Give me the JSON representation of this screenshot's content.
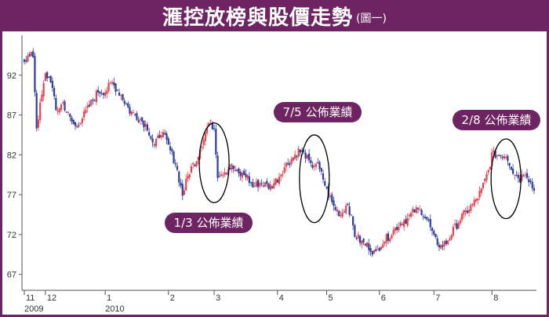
{
  "header": {
    "title": "滙控放榜與股價走勢",
    "subtitle": "(圖一)"
  },
  "colors": {
    "banner": "#6e2462",
    "up": "#e8434f",
    "down": "#2b3e9a",
    "ellipse": "#000000"
  },
  "chart_data": {
    "type": "candlestick",
    "title": "滙控放榜與股價走勢",
    "subtitle": "(圖一)",
    "ylim": [
      65,
      97
    ],
    "yticks": [
      92,
      87,
      82,
      77,
      72,
      67
    ],
    "grid": false,
    "x_ticks": [
      {
        "label": "11",
        "idx": 0
      },
      {
        "label": "12",
        "idx": 12
      },
      {
        "label": "1",
        "idx": 46
      },
      {
        "label": "2",
        "idx": 82
      },
      {
        "label": "3",
        "idx": 108
      },
      {
        "label": "4",
        "idx": 144
      },
      {
        "label": "5",
        "idx": 172
      },
      {
        "label": "6",
        "idx": 202
      },
      {
        "label": "7",
        "idx": 233
      },
      {
        "label": "8",
        "idx": 266
      }
    ],
    "year_labels": [
      {
        "label": "2009",
        "idx": 0
      },
      {
        "label": "2010",
        "idx": 46
      }
    ],
    "annotations": [
      {
        "text": "1/3 公佈業績",
        "center_idx": 108,
        "y_top": 86,
        "y_bottom": 76
      },
      {
        "text": "7/5 公佈業績",
        "center_idx": 165,
        "y_top": 84.5,
        "y_bottom": 73.5
      },
      {
        "text": "2/8 公佈業績",
        "center_idx": 274,
        "y_top": 84,
        "y_bottom": 74
      }
    ],
    "anchors": [
      [
        0,
        94.0
      ],
      [
        5,
        94.5
      ],
      [
        7,
        85.5
      ],
      [
        12,
        92.0
      ],
      [
        15,
        91.5
      ],
      [
        18,
        87.5
      ],
      [
        22,
        88.5
      ],
      [
        26,
        86.5
      ],
      [
        29,
        85.5
      ],
      [
        34,
        87.0
      ],
      [
        38,
        88.5
      ],
      [
        42,
        90.0
      ],
      [
        46,
        90.0
      ],
      [
        50,
        91.0
      ],
      [
        55,
        89.5
      ],
      [
        60,
        87.5
      ],
      [
        66,
        86.5
      ],
      [
        70,
        85.5
      ],
      [
        74,
        83.0
      ],
      [
        78,
        85.0
      ],
      [
        82,
        83.0
      ],
      [
        86,
        81.0
      ],
      [
        90,
        77.0
      ],
      [
        94,
        80.0
      ],
      [
        98,
        81.5
      ],
      [
        101,
        83.5
      ],
      [
        105,
        86.0
      ],
      [
        108,
        85.5
      ],
      [
        110,
        79.5
      ],
      [
        114,
        80.0
      ],
      [
        118,
        80.5
      ],
      [
        122,
        79.5
      ],
      [
        126,
        79.5
      ],
      [
        130,
        78.0
      ],
      [
        134,
        78.5
      ],
      [
        140,
        78.0
      ],
      [
        144,
        79.0
      ],
      [
        148,
        80.5
      ],
      [
        152,
        81.5
      ],
      [
        156,
        82.5
      ],
      [
        160,
        82.0
      ],
      [
        163,
        80.5
      ],
      [
        166,
        81.0
      ],
      [
        170,
        79.0
      ],
      [
        172,
        77.5
      ],
      [
        176,
        75.5
      ],
      [
        180,
        74.5
      ],
      [
        184,
        76.0
      ],
      [
        188,
        72.0
      ],
      [
        192,
        71.0
      ],
      [
        196,
        70.5
      ],
      [
        200,
        69.5
      ],
      [
        203,
        71.0
      ],
      [
        206,
        71.5
      ],
      [
        210,
        72.5
      ],
      [
        214,
        73.5
      ],
      [
        218,
        74.0
      ],
      [
        222,
        75.0
      ],
      [
        226,
        75.0
      ],
      [
        230,
        73.5
      ],
      [
        233,
        71.5
      ],
      [
        237,
        70.5
      ],
      [
        240,
        71.0
      ],
      [
        244,
        72.5
      ],
      [
        248,
        74.0
      ],
      [
        252,
        75.0
      ],
      [
        256,
        76.0
      ],
      [
        260,
        77.5
      ],
      [
        264,
        80.0
      ],
      [
        266,
        82.0
      ],
      [
        270,
        82.0
      ],
      [
        274,
        82.0
      ],
      [
        278,
        80.0
      ],
      [
        282,
        79.0
      ],
      [
        285,
        80.0
      ],
      [
        288,
        78.5
      ],
      [
        290,
        77.5
      ]
    ]
  }
}
